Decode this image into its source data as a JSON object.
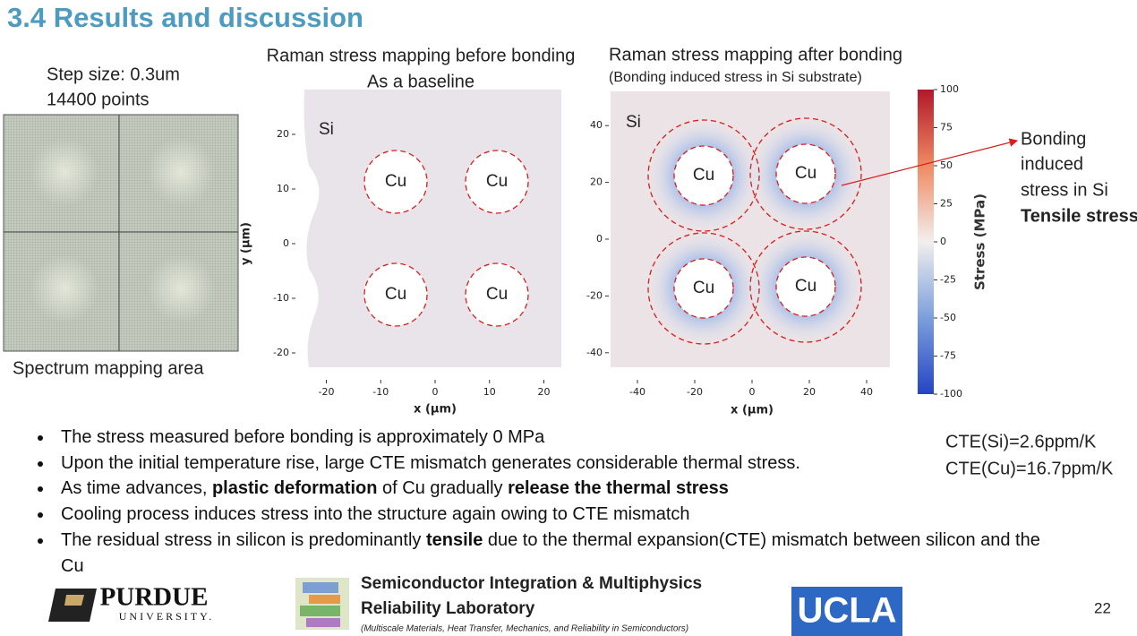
{
  "header": {
    "title": "3.4 Results and discussion"
  },
  "spectrum": {
    "step": "Step size: 0.3um",
    "points": "14400 points",
    "caption": "Spectrum mapping area"
  },
  "before_map": {
    "title": "Raman stress mapping before bonding",
    "subtitle": "As a baseline",
    "si": "Si",
    "cu_labels": [
      "Cu",
      "Cu",
      "Cu",
      "Cu"
    ],
    "xticks": [
      -20,
      -10,
      0,
      10,
      20
    ],
    "yticks": [
      20,
      10,
      0,
      -10,
      -20
    ],
    "xlabel": "x (μm)",
    "ylabel": "y (μm)"
  },
  "after_map": {
    "title": "Raman stress mapping after bonding",
    "subtitle": "(Bonding induced stress in Si substrate)",
    "si": "Si",
    "cu_labels": [
      "Cu",
      "Cu",
      "Cu",
      "Cu"
    ],
    "xticks": [
      -40,
      -20,
      0,
      20,
      40
    ],
    "yticks": [
      40,
      20,
      0,
      -20,
      -40
    ],
    "xlabel": "x (μm)"
  },
  "colorbar": {
    "ticks": [
      100,
      75,
      50,
      25,
      0,
      -25,
      -50,
      -75,
      -100
    ],
    "label": "Stress (MPa)"
  },
  "annotation": {
    "lines": [
      "Bonding",
      "induced",
      "stress in Si"
    ],
    "bold": "Tensile stress"
  },
  "bullets": [
    [
      {
        "text": "The stress measured before bonding is approximately 0 MPa",
        "bold": false
      }
    ],
    [
      {
        "text": "Upon the initial temperature rise, large  CTE mismatch generates considerable thermal stress.",
        "bold": false
      }
    ],
    [
      {
        "text": "As time advances, ",
        "bold": false
      },
      {
        "text": "plastic deformation",
        "bold": true
      },
      {
        "text": " of Cu gradually ",
        "bold": false
      },
      {
        "text": "release the thermal stress",
        "bold": true
      }
    ],
    [
      {
        "text": "Cooling process induces stress into the structure again owing to CTE mismatch",
        "bold": false
      }
    ],
    [
      {
        "text": "The residual stress in silicon is predominantly ",
        "bold": false
      },
      {
        "text": "tensile",
        "bold": true
      },
      {
        "text": " due to the thermal expansion(CTE) mismatch between silicon and the Cu",
        "bold": false
      }
    ]
  ],
  "cte": [
    "CTE(Si)=2.6ppm/K",
    "CTE(Cu)=16.7ppm/K"
  ],
  "footer": {
    "purdue": "PURDUE",
    "university": "UNIVERSITY.",
    "lab_line1": "Semiconductor Integration & Multiphysics",
    "lab_line2": "Reliability Laboratory",
    "lab_note": "(Multiscale Materials, Heat Transfer, Mechanics, and Reliability in Semiconductors)",
    "ucla": "UCLA",
    "page": "22"
  }
}
